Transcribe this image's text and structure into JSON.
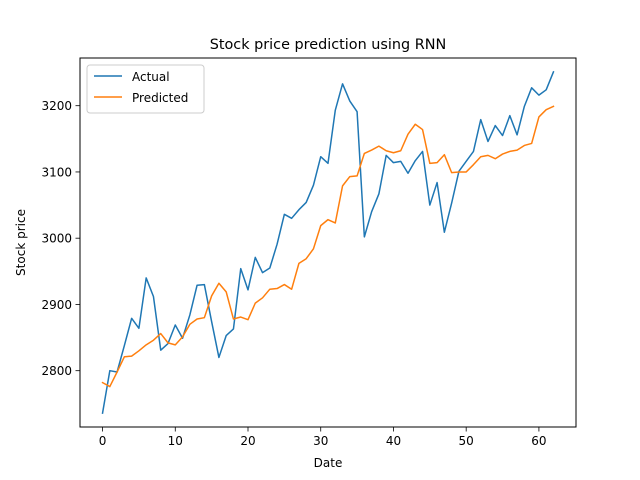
{
  "chart_data": {
    "type": "line",
    "title": "Stock price prediction using RNN",
    "xlabel": "Date",
    "ylabel": "Stock price",
    "xlim": [
      -3.1,
      65.1
    ],
    "ylim": [
      2715,
      3272
    ],
    "xticks": [
      0,
      10,
      20,
      30,
      40,
      50,
      60
    ],
    "yticks": [
      2800,
      2900,
      3000,
      3100,
      3200
    ],
    "grid": false,
    "legend_position": "top-left",
    "series": [
      {
        "name": "Actual",
        "color": "#1f77b4",
        "values": [
          2736,
          2800,
          2798,
          2838,
          2879,
          2864,
          2940,
          2912,
          2831,
          2841,
          2869,
          2849,
          2884,
          2929,
          2930,
          2874,
          2820,
          2853,
          2863,
          2954,
          2922,
          2971,
          2948,
          2955,
          2991,
          3036,
          3030,
          3043,
          3054,
          3080,
          3123,
          3113,
          3193,
          3233,
          3207,
          3191,
          3002,
          3040,
          3067,
          3125,
          3114,
          3116,
          3098,
          3117,
          3131,
          3050,
          3084,
          3009,
          3053,
          3101,
          3116,
          3131,
          3179,
          3146,
          3170,
          3155,
          3185,
          3156,
          3199,
          3227,
          3216,
          3224,
          3251
        ]
      },
      {
        "name": "Predicted",
        "color": "#ff7f0e",
        "values": [
          2782,
          2776,
          2798,
          2821,
          2822,
          2830,
          2839,
          2846,
          2856,
          2842,
          2839,
          2851,
          2870,
          2878,
          2880,
          2913,
          2932,
          2919,
          2878,
          2881,
          2877,
          2902,
          2910,
          2923,
          2924,
          2930,
          2923,
          2962,
          2969,
          2984,
          3019,
          3028,
          3023,
          3079,
          3093,
          3094,
          3128,
          3133,
          3139,
          3132,
          3129,
          3132,
          3157,
          3172,
          3164,
          3113,
          3114,
          3126,
          3099,
          3100,
          3100,
          3111,
          3123,
          3125,
          3120,
          3127,
          3131,
          3133,
          3140,
          3143,
          3183,
          3194,
          3199
        ]
      }
    ]
  }
}
